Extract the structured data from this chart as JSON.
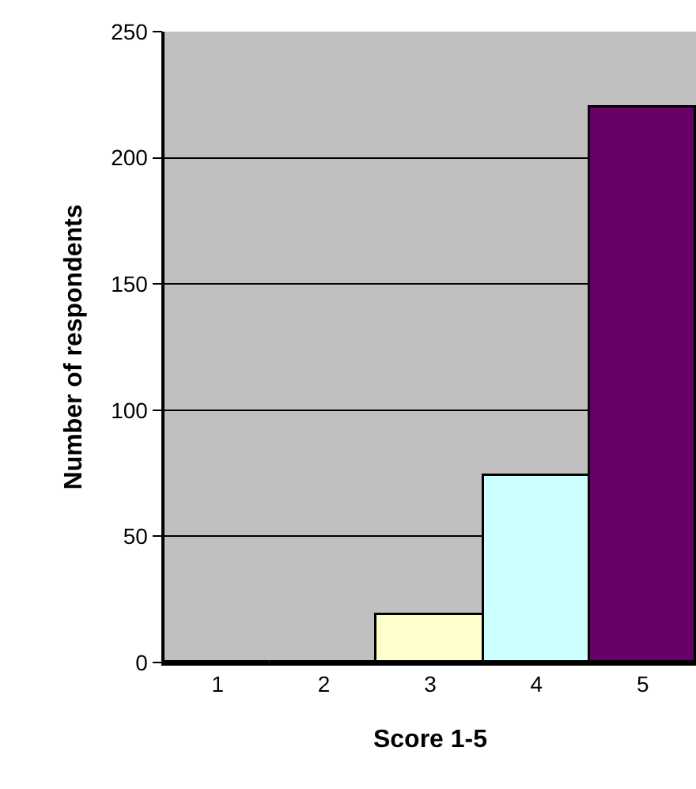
{
  "chart_data": {
    "type": "bar",
    "xlabel": "Score 1-5",
    "ylabel": "Number of respondents",
    "categories": [
      "1",
      "2",
      "3",
      "4",
      "5"
    ],
    "values": [
      0,
      0,
      19,
      74,
      220
    ],
    "colors": [
      "#000000",
      "#000000",
      "#ffffcc",
      "#ccffff",
      "#660066"
    ],
    "ylim": [
      0,
      250
    ],
    "yticks": [
      0,
      50,
      100,
      150,
      200,
      250
    ],
    "grid": "y",
    "legend": false
  }
}
